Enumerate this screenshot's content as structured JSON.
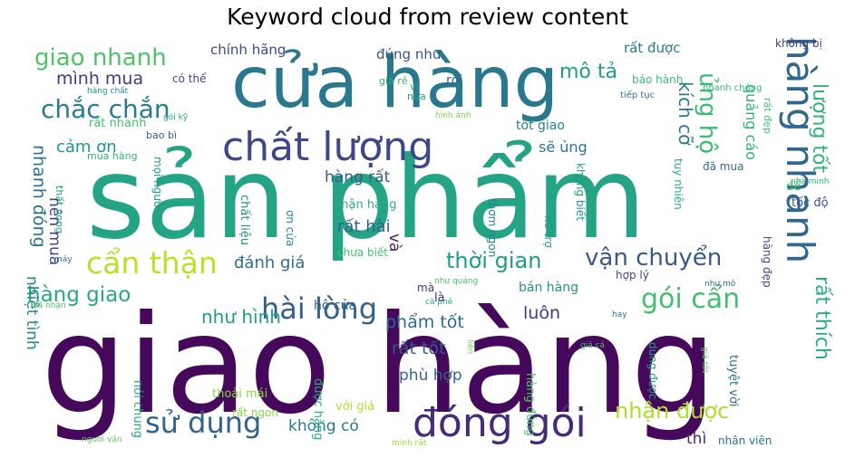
{
  "chart_data": {
    "type": "wordcloud",
    "title": "Keyword cloud from review content",
    "colormap": "viridis",
    "background": "#ffffff",
    "words": [
      {
        "text": "giao hàng",
        "weight": 1.0
      },
      {
        "text": "sản phẩm",
        "weight": 0.93
      },
      {
        "text": "cửa hàng",
        "weight": 0.62
      },
      {
        "text": "chất lượng",
        "weight": 0.42
      },
      {
        "text": "hàng nhanh",
        "weight": 0.36
      },
      {
        "text": "đóng gói",
        "weight": 0.34
      },
      {
        "text": "cẩn thận",
        "weight": 0.27
      },
      {
        "text": "sử dụng",
        "weight": 0.26
      },
      {
        "text": "hài lòng",
        "weight": 0.25
      },
      {
        "text": "vận chuyển",
        "weight": 0.23
      },
      {
        "text": "thời gian",
        "weight": 0.2
      },
      {
        "text": "gói cẩn",
        "weight": 0.2
      },
      {
        "text": "chắc chắn",
        "weight": 0.2
      },
      {
        "text": "giao nhanh",
        "weight": 0.19
      },
      {
        "text": "ủng hộ",
        "weight": 0.18
      },
      {
        "text": "nhận được",
        "weight": 0.17
      },
      {
        "text": "hàng giao",
        "weight": 0.16
      },
      {
        "text": "mô tả",
        "weight": 0.16
      },
      {
        "text": "lượng tốt",
        "weight": 0.15
      },
      {
        "text": "kích cỡ",
        "weight": 0.15
      },
      {
        "text": "rất thích",
        "weight": 0.15
      },
      {
        "text": "như hình",
        "weight": 0.14
      },
      {
        "text": "mình mua",
        "weight": 0.14
      },
      {
        "text": "nhanh đóng",
        "weight": 0.14
      },
      {
        "text": "phẩm tốt",
        "weight": 0.13
      },
      {
        "text": "rất tốt",
        "weight": 0.13
      },
      {
        "text": "luôn",
        "weight": 0.13
      },
      {
        "text": "rất hài",
        "weight": 0.13
      },
      {
        "text": "đánh giá",
        "weight": 0.13
      },
      {
        "text": "cảm ơn",
        "weight": 0.13
      },
      {
        "text": "hàng rất",
        "weight": 0.12
      },
      {
        "text": "không có",
        "weight": 0.12
      },
      {
        "text": "phù hợp",
        "weight": 0.12
      },
      {
        "text": "nên mua",
        "weight": 0.12
      },
      {
        "text": "nhiệt tình",
        "weight": 0.12
      },
      {
        "text": "quảng cáo",
        "weight": 0.11
      },
      {
        "text": "và",
        "weight": 0.11
      },
      {
        "text": "thì",
        "weight": 0.11
      },
      {
        "text": "sẽ ủng",
        "weight": 0.1
      },
      {
        "text": "chính hãng",
        "weight": 0.1
      },
      {
        "text": "đúng như",
        "weight": 0.1
      },
      {
        "text": "rất được",
        "weight": 0.09
      },
      {
        "text": "tốt giao",
        "weight": 0.09
      },
      {
        "text": "hộ cửa",
        "weight": 0.09
      },
      {
        "text": "bán hàng",
        "weight": 0.08
      },
      {
        "text": "rồi",
        "weight": 0.08
      },
      {
        "text": "có thể",
        "weight": 0.08
      },
      {
        "text": "nhận hàng",
        "weight": 0.08
      },
      {
        "text": "rất nhanh",
        "weight": 0.08
      },
      {
        "text": "nói chung",
        "weight": 0.08
      },
      {
        "text": "chất liệu",
        "weight": 0.08
      },
      {
        "text": "hỗ trợ",
        "weight": 0.08
      },
      {
        "text": "thoải mái",
        "weight": 0.08
      },
      {
        "text": "không biết",
        "weight": 0.08
      },
      {
        "text": "tuyệt vời",
        "weight": 0.08
      },
      {
        "text": "tuy nhiên",
        "weight": 0.08
      },
      {
        "text": "nhân viên",
        "weight": 0.07
      },
      {
        "text": "với giá",
        "weight": 0.07
      },
      {
        "text": "được hàng",
        "weight": 0.07
      },
      {
        "text": "hàng đúng",
        "weight": 0.07
      },
      {
        "text": "dùng được",
        "weight": 0.07
      },
      {
        "text": "bảo hành",
        "weight": 0.07
      },
      {
        "text": "không bị",
        "weight": 0.07
      },
      {
        "text": "tốc độ",
        "weight": 0.07
      },
      {
        "text": "đã mua",
        "weight": 0.07
      },
      {
        "text": "hàng đẹp",
        "weight": 0.07
      },
      {
        "text": "rất ngon",
        "weight": 0.07
      },
      {
        "text": "hợp lý",
        "weight": 0.07
      },
      {
        "text": "thơm ngon",
        "weight": 0.06
      },
      {
        "text": "mọi người",
        "weight": 0.06
      },
      {
        "text": "chưa biết",
        "weight": 0.06
      },
      {
        "text": "ơn cửa",
        "weight": 0.06
      },
      {
        "text": "là",
        "weight": 0.06
      },
      {
        "text": "mà",
        "weight": 0.06
      },
      {
        "text": "giá rẻ",
        "weight": 0.06
      },
      {
        "text": "nữa",
        "weight": 0.06
      },
      {
        "text": "vì",
        "weight": 0.06
      },
      {
        "text": "bao bì",
        "weight": 0.06
      },
      {
        "text": "mua hàng",
        "weight": 0.06
      },
      {
        "text": "thất vọng",
        "weight": 0.06
      },
      {
        "text": "để",
        "weight": 0.06
      },
      {
        "text": "rất đẹp",
        "weight": 0.05
      },
      {
        "text": "tiếp tục",
        "weight": 0.05
      },
      {
        "text": "nhanh chóng",
        "weight": 0.05
      },
      {
        "text": "hàng chất",
        "weight": 0.05
      },
      {
        "text": "hình ảnh",
        "weight": 0.05
      },
      {
        "text": "gói kỹ",
        "weight": 0.05
      },
      {
        "text": "nhà minh",
        "weight": 0.05
      },
      {
        "text": "như quảng",
        "weight": 0.05
      },
      {
        "text": "cà phê",
        "weight": 0.05
      },
      {
        "text": "như mô",
        "weight": 0.05
      },
      {
        "text": "hay",
        "weight": 0.05
      },
      {
        "text": "giá cả",
        "weight": 0.05
      },
      {
        "text": "giá tốt",
        "weight": 0.05
      },
      {
        "text": "liền",
        "weight": 0.05
      },
      {
        "text": "máy",
        "weight": 0.05
      },
      {
        "text": "đã nhận",
        "weight": 0.05
      },
      {
        "text": "người vận",
        "weight": 0.05
      },
      {
        "text": "mình rất",
        "weight": 0.05
      }
    ]
  }
}
